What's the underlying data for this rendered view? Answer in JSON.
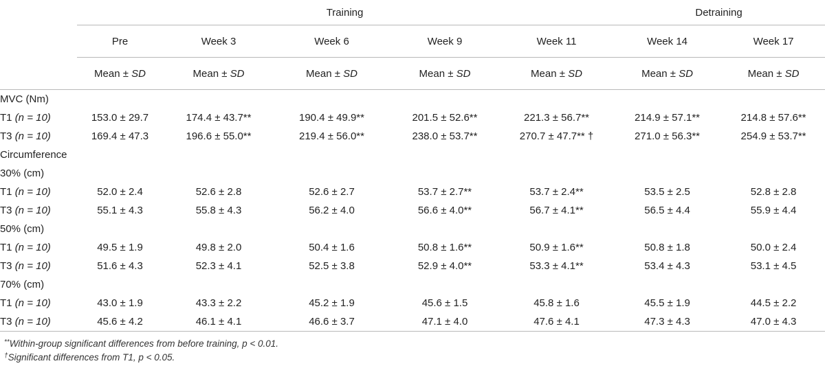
{
  "header": {
    "group_training": "Training",
    "group_detraining": "Detraining",
    "periods": [
      "Pre",
      "Week 3",
      "Week 6",
      "Week 9",
      "Week 11",
      "Week 14",
      "Week 17"
    ],
    "stat_prefix": "Mean ±",
    "stat_sd": "SD"
  },
  "sections": [
    {
      "title": "MVC (Nm)",
      "rows": [
        {
          "group": "T1",
          "n_label": "(n = 10)",
          "values": [
            "153.0 ± 29.7",
            "174.4 ± 43.7**",
            "190.4 ± 49.9**",
            "201.5 ± 52.6**",
            "221.3 ± 56.7**",
            "214.9 ± 57.1**",
            "214.8 ± 57.6**"
          ]
        },
        {
          "group": "T3",
          "n_label": "(n = 10)",
          "values": [
            "169.4 ± 47.3",
            "196.6 ± 55.0**",
            "219.4 ± 56.0**",
            "238.0 ± 53.7**",
            "270.7 ± 47.7** †",
            "271.0 ± 56.3**",
            "254.9 ± 53.7**"
          ]
        }
      ]
    },
    {
      "title": "Circumference",
      "rows": []
    },
    {
      "title": "30% (cm)",
      "rows": [
        {
          "group": "T1",
          "n_label": "(n = 10)",
          "values": [
            "52.0 ± 2.4",
            "52.6 ± 2.8",
            "52.6 ± 2.7",
            "53.7 ± 2.7**",
            "53.7 ± 2.4**",
            "53.5 ± 2.5",
            "52.8 ± 2.8"
          ]
        },
        {
          "group": "T3",
          "n_label": "(n = 10)",
          "values": [
            "55.1 ± 4.3",
            "55.8 ± 4.3",
            "56.2 ± 4.0",
            "56.6 ± 4.0**",
            "56.7 ± 4.1**",
            "56.5 ± 4.4",
            "55.9 ± 4.4"
          ]
        }
      ]
    },
    {
      "title": "50% (cm)",
      "rows": [
        {
          "group": "T1",
          "n_label": "(n = 10)",
          "values": [
            "49.5 ± 1.9",
            "49.8 ± 2.0",
            "50.4 ± 1.6",
            "50.8 ± 1.6**",
            "50.9 ± 1.6**",
            "50.8 ± 1.8",
            "50.0 ± 2.4"
          ]
        },
        {
          "group": "T3",
          "n_label": "(n = 10)",
          "values": [
            "51.6 ± 4.3",
            "52.3 ± 4.1",
            "52.5 ± 3.8",
            "52.9 ± 4.0**",
            "53.3 ± 4.1**",
            "53.4 ± 4.3",
            "53.1 ± 4.5"
          ]
        }
      ]
    },
    {
      "title": "70% (cm)",
      "rows": [
        {
          "group": "T1",
          "n_label": "(n = 10)",
          "values": [
            "43.0 ± 1.9",
            "43.3 ± 2.2",
            "45.2 ± 1.9",
            "45.6 ± 1.5",
            "45.8 ± 1.6",
            "45.5 ± 1.9",
            "44.5 ± 2.2"
          ]
        },
        {
          "group": "T3",
          "n_label": "(n = 10)",
          "values": [
            "45.6 ± 4.2",
            "46.1 ± 4.1",
            "46.6 ± 3.7",
            "47.1 ± 4.0",
            "47.6 ± 4.1",
            "47.3 ± 4.3",
            "47.0 ± 4.3"
          ]
        }
      ]
    }
  ],
  "footnotes": {
    "f1_mark": "**",
    "f1_text": "Within-group significant differences from before training, p < 0.01.",
    "f2_mark": "†",
    "f2_text": "Significant differences from T1, p < 0.05."
  }
}
